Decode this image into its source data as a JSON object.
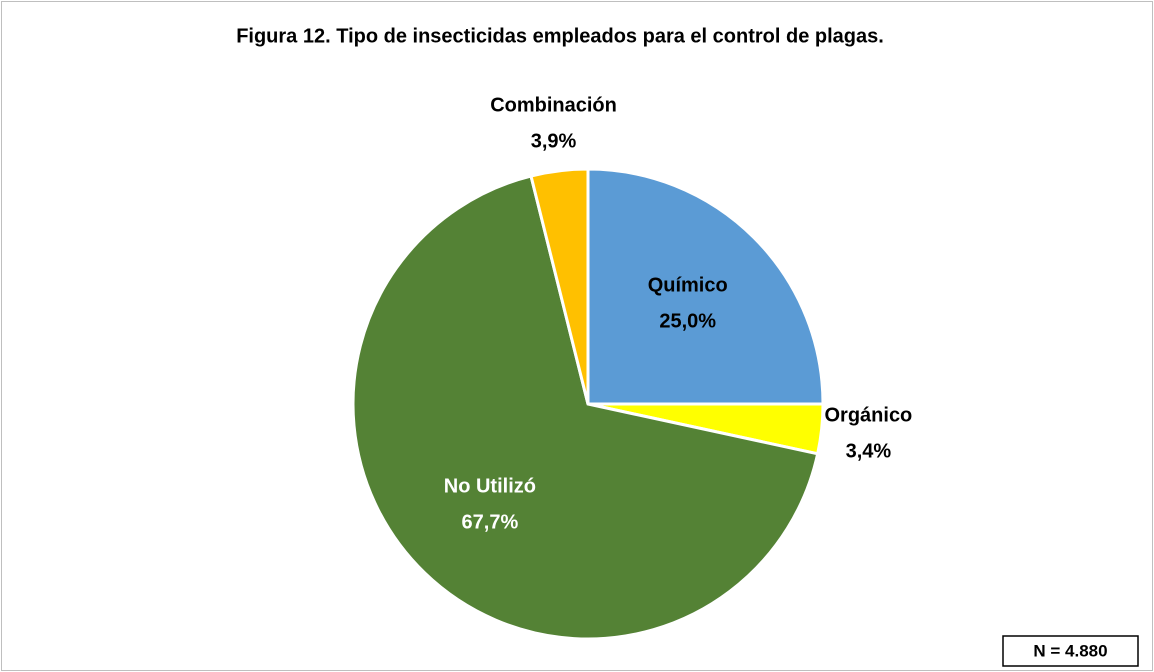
{
  "chart_data": {
    "type": "pie",
    "title": "Figura 12. Tipo de insecticidas empleados para el control de plagas.",
    "categories": [
      "Químico",
      "Orgánico",
      "No Utilizó",
      "Combinación"
    ],
    "values": [
      25.0,
      3.4,
      67.7,
      3.9
    ],
    "value_labels": [
      "25,0%",
      "3,4%",
      "67,7%",
      "3,9%"
    ],
    "colors": [
      "#5b9bd5",
      "#ffff00",
      "#548235",
      "#ffc000"
    ],
    "annotation": "N = 4.880"
  }
}
